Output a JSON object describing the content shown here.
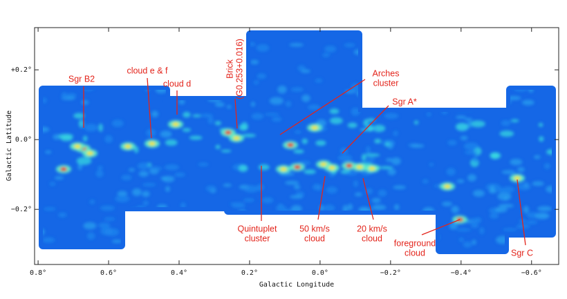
{
  "chart_data": {
    "type": "image",
    "x_label": "Galactic Longitude",
    "y_label": "Galactic Latitude",
    "xlim": [
      0.81,
      -0.677
    ],
    "ylim": [
      -0.358,
      0.321
    ],
    "xticks": [
      {
        "value": 0.8,
        "label": "0.8°"
      },
      {
        "value": 0.6,
        "label": "0.6°"
      },
      {
        "value": 0.4,
        "label": "0.4°"
      },
      {
        "value": 0.2,
        "label": "0.2°"
      },
      {
        "value": 0.0,
        "label": "0.0°"
      },
      {
        "value": -0.2,
        "label": "−0.2°"
      },
      {
        "value": -0.4,
        "label": "−0.4°"
      },
      {
        "value": -0.6,
        "label": "−0.6°"
      }
    ],
    "yticks": [
      {
        "value": 0.2,
        "label": "+0.2°"
      },
      {
        "value": 0.0,
        "label": "0.0°"
      },
      {
        "value": -0.2,
        "label": "−0.2°"
      }
    ],
    "annotations": [
      {
        "lines": [
          "Sgr B2"
        ]
      },
      {
        "lines": [
          "cloud e & f"
        ]
      },
      {
        "lines": [
          "cloud d"
        ]
      },
      {
        "lines": [
          "Brick",
          "(G0.253+0.016)"
        ]
      },
      {
        "lines": [
          "Arches",
          "cluster"
        ]
      },
      {
        "lines": [
          "Sgr A*"
        ]
      },
      {
        "lines": [
          "Quintuplet",
          "cluster"
        ]
      },
      {
        "lines": [
          "50 km/s",
          "cloud"
        ]
      },
      {
        "lines": [
          "20 km/s",
          "cloud"
        ]
      },
      {
        "lines": [
          "foreground",
          "cloud"
        ]
      },
      {
        "lines": [
          "Sgr C"
        ]
      }
    ]
  }
}
